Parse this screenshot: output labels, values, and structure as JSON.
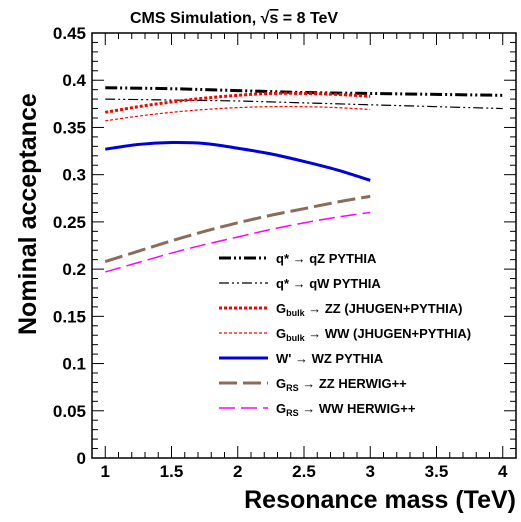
{
  "chart_data": {
    "type": "line",
    "title_prefix": "CMS Simulation, ",
    "title_sqrt": "√",
    "title_s": "s",
    "title_suffix": " = 8 TeV",
    "xlabel": "Resonance mass (TeV)",
    "ylabel": "Nominal acceptance",
    "xlim": [
      0.9,
      4.1
    ],
    "ylim": [
      0,
      0.45
    ],
    "xticks": [
      1,
      1.5,
      2,
      2.5,
      3,
      3.5,
      4
    ],
    "xtick_labels": [
      "1",
      "1.5",
      "2",
      "2.5",
      "3",
      "3.5",
      "4"
    ],
    "yticks": [
      0,
      0.05,
      0.1,
      0.15,
      0.2,
      0.25,
      0.3,
      0.35,
      0.4,
      0.45
    ],
    "ytick_labels": [
      "0",
      "0.05",
      "0.1",
      "0.15",
      "0.2",
      "0.25",
      "0.3",
      "0.35",
      "0.4",
      "0.45"
    ],
    "series": [
      {
        "legend_main": "q*",
        "legend_sub": "",
        "legend_rest": " → qZ PYTHIA",
        "color": "#000000",
        "width": 3,
        "dash": "12 3 2 3 2 3",
        "x": [
          1,
          1.5,
          2,
          2.5,
          3,
          3.5,
          4
        ],
        "y": [
          0.392,
          0.391,
          0.389,
          0.387,
          0.386,
          0.385,
          0.384
        ]
      },
      {
        "legend_main": "q*",
        "legend_sub": "",
        "legend_rest": " → qW PYTHIA",
        "color": "#000000",
        "width": 1.2,
        "dash": "10 3 2 3 2 3",
        "x": [
          1,
          1.5,
          2,
          2.5,
          3,
          3.5,
          4
        ],
        "y": [
          0.38,
          0.379,
          0.378,
          0.376,
          0.374,
          0.372,
          0.37
        ]
      },
      {
        "legend_main": "G",
        "legend_sub": "bulk",
        "legend_rest": " → ZZ (JHUGEN+PYTHIA)",
        "color": "#ff0000",
        "width": 3,
        "dash": "3 2",
        "x": [
          1,
          1.25,
          1.5,
          1.75,
          2,
          2.25,
          2.5,
          2.75,
          3
        ],
        "y": [
          0.366,
          0.372,
          0.377,
          0.381,
          0.384,
          0.386,
          0.386,
          0.385,
          0.383
        ]
      },
      {
        "legend_main": "G",
        "legend_sub": "bulk",
        "legend_rest": " → WW (JHUGEN+PYTHIA)",
        "color": "#ff0000",
        "width": 1.2,
        "dash": "3 2",
        "x": [
          1,
          1.25,
          1.5,
          1.75,
          2,
          2.25,
          2.5,
          2.75,
          3
        ],
        "y": [
          0.357,
          0.362,
          0.366,
          0.369,
          0.371,
          0.372,
          0.372,
          0.371,
          0.369
        ]
      },
      {
        "legend_main": "W'",
        "legend_sub": "",
        "legend_rest": " → WZ PYTHIA",
        "color": "#0000dd",
        "width": 3,
        "dash": "",
        "x": [
          1,
          1.25,
          1.5,
          1.75,
          2,
          2.25,
          2.5,
          2.75,
          3
        ],
        "y": [
          0.327,
          0.332,
          0.334,
          0.333,
          0.328,
          0.322,
          0.314,
          0.305,
          0.294
        ]
      },
      {
        "legend_main": "G",
        "legend_sub": "RS",
        "legend_rest": " → ZZ HERWIG++",
        "color": "#8b6b5a",
        "width": 3,
        "dash": "18 6",
        "x": [
          1,
          1.25,
          1.5,
          1.75,
          2,
          2.25,
          2.5,
          2.75,
          3
        ],
        "y": [
          0.208,
          0.219,
          0.23,
          0.24,
          0.249,
          0.257,
          0.264,
          0.271,
          0.277
        ]
      },
      {
        "legend_main": "G",
        "legend_sub": "RS",
        "legend_rest": " → WW HERWIG++",
        "color": "#ff00ff",
        "width": 1.5,
        "dash": "16 6",
        "x": [
          1,
          1.25,
          1.5,
          1.75,
          2,
          2.25,
          2.5,
          2.75,
          3
        ],
        "y": [
          0.197,
          0.207,
          0.217,
          0.226,
          0.234,
          0.242,
          0.249,
          0.255,
          0.26
        ]
      }
    ],
    "legend_position": "lower-right",
    "grid": false
  }
}
